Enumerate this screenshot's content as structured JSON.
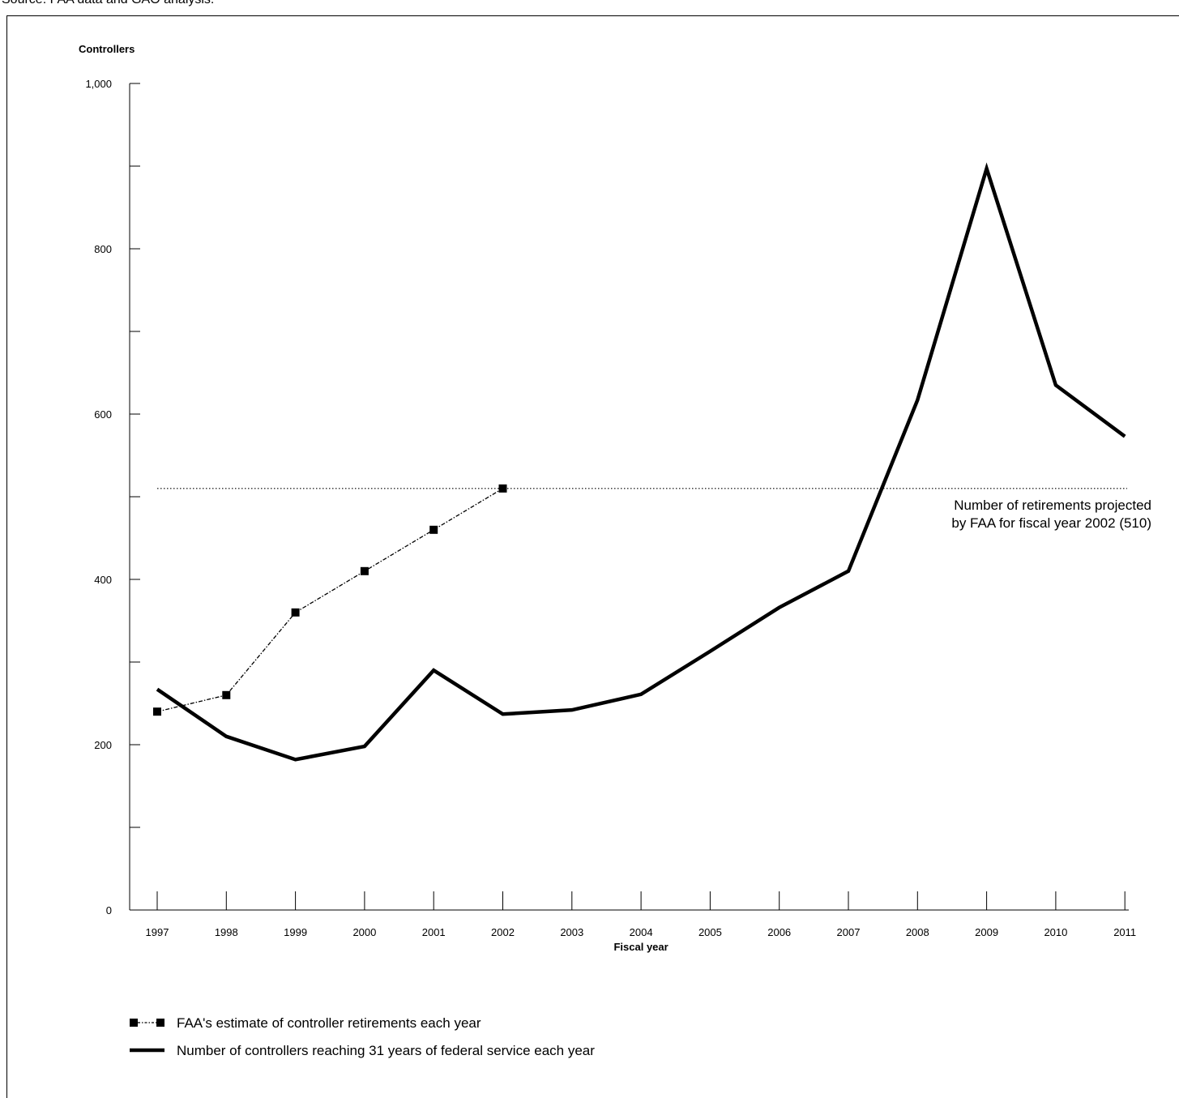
{
  "page": {
    "top_caption": "Source: FAA data and GAO analysis."
  },
  "chart_data": {
    "type": "line",
    "ylabel": "Controllers",
    "xlabel": "Fiscal year",
    "ylim": [
      0,
      1000
    ],
    "y_ticks": [
      0,
      100,
      200,
      300,
      400,
      500,
      600,
      700,
      800,
      900,
      1000
    ],
    "y_tick_labels": [
      "0",
      "",
      "200",
      "",
      "400",
      "",
      "600",
      "",
      "800",
      "",
      "1,000"
    ],
    "x": [
      "1997",
      "1998",
      "1999",
      "2000",
      "2001",
      "2002",
      "2003",
      "2004",
      "2005",
      "2006",
      "2007",
      "2008",
      "2009",
      "2010",
      "2011"
    ],
    "series": [
      {
        "name": "FAA's estimate of controller retirements each year",
        "style": "dash-dot",
        "marker": "square",
        "color": "#000000",
        "values": [
          240,
          260,
          360,
          410,
          460,
          510,
          null,
          null,
          null,
          null,
          null,
          null,
          null,
          null,
          null
        ]
      },
      {
        "name": "Number of controllers reaching 31 years of federal service each year",
        "style": "solid-thick",
        "color": "#000000",
        "values": [
          267,
          210,
          182,
          198,
          290,
          237,
          242,
          261,
          313,
          366,
          410,
          617,
          897,
          635,
          573
        ]
      }
    ],
    "reference_line": {
      "value": 510,
      "label_lines": [
        "Number of retirements projected",
        "by FAA for fiscal year 2002 (510)"
      ]
    },
    "legend_placement": "bottom-left"
  }
}
